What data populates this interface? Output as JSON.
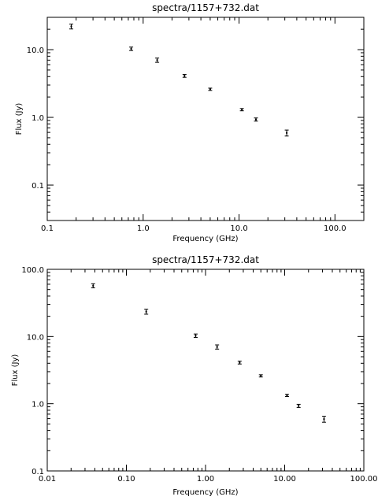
{
  "chart_data": [
    {
      "type": "scatter",
      "title": "spectra/1157+732.dat",
      "xlabel": "Frequency (GHz)",
      "ylabel": "Flux (Jy)",
      "xscale": "log",
      "yscale": "log",
      "xlim": [
        0.1,
        200
      ],
      "ylim": [
        0.03,
        30
      ],
      "xticks": [
        {
          "value": 0.1,
          "label": "0.1"
        },
        {
          "value": 1,
          "label": "1.0"
        },
        {
          "value": 10,
          "label": "10.0"
        },
        {
          "value": 100,
          "label": "100.0"
        }
      ],
      "yticks": [
        {
          "value": 0.1,
          "label": "0.1"
        },
        {
          "value": 1,
          "label": "1.0"
        },
        {
          "value": 10,
          "label": "10.0"
        }
      ],
      "grid": false,
      "points": [
        {
          "x": 0.178,
          "y": 22.0,
          "err": 1.8
        },
        {
          "x": 0.75,
          "y": 10.3,
          "err": 0.6
        },
        {
          "x": 1.4,
          "y": 7.0,
          "err": 0.5
        },
        {
          "x": 2.7,
          "y": 4.1,
          "err": 0.2
        },
        {
          "x": 5.0,
          "y": 2.6,
          "err": 0.1
        },
        {
          "x": 10.7,
          "y": 1.3,
          "err": 0.05
        },
        {
          "x": 15.0,
          "y": 0.93,
          "err": 0.05
        },
        {
          "x": 31.4,
          "y": 0.59,
          "err": 0.06
        }
      ]
    },
    {
      "type": "scatter",
      "title": "spectra/1157+732.dat",
      "xlabel": "Frequency (GHz)",
      "ylabel": "Flux (Jy)",
      "xscale": "log",
      "yscale": "log",
      "xlim": [
        0.01,
        100
      ],
      "ylim": [
        0.1,
        100
      ],
      "xticks": [
        {
          "value": 0.01,
          "label": "0.01"
        },
        {
          "value": 0.1,
          "label": "0.10"
        },
        {
          "value": 1,
          "label": "1.00"
        },
        {
          "value": 10,
          "label": "10.00"
        },
        {
          "value": 100,
          "label": "100.00"
        }
      ],
      "yticks": [
        {
          "value": 0.1,
          "label": "0.1"
        },
        {
          "value": 1,
          "label": "1.0"
        },
        {
          "value": 10,
          "label": "10.0"
        },
        {
          "value": 100,
          "label": "100.0"
        }
      ],
      "grid": false,
      "points": [
        {
          "x": 0.038,
          "y": 57.0,
          "err": 4.0
        },
        {
          "x": 0.178,
          "y": 23.5,
          "err": 2.0
        },
        {
          "x": 0.75,
          "y": 10.3,
          "err": 0.6
        },
        {
          "x": 1.4,
          "y": 7.0,
          "err": 0.5
        },
        {
          "x": 2.7,
          "y": 4.1,
          "err": 0.2
        },
        {
          "x": 5.0,
          "y": 2.6,
          "err": 0.1
        },
        {
          "x": 10.7,
          "y": 1.33,
          "err": 0.05
        },
        {
          "x": 15.0,
          "y": 0.93,
          "err": 0.05
        },
        {
          "x": 31.4,
          "y": 0.59,
          "err": 0.06
        }
      ]
    }
  ]
}
